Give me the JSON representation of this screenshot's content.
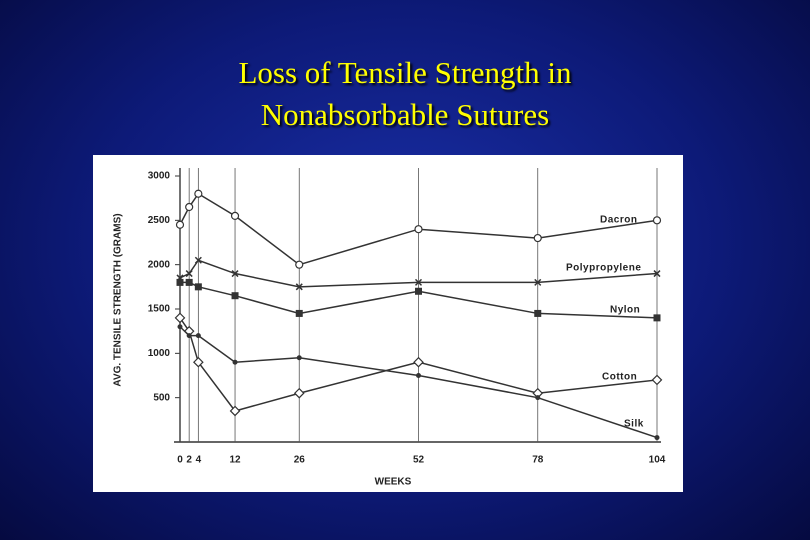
{
  "slide": {
    "title_lines": [
      "Loss of Tensile Strength in",
      "Nonabsorbable Sutures"
    ]
  },
  "chart_data": {
    "type": "line",
    "ylabel": "AVG. TENSILE STRENGTH (GRAMS)",
    "xlabel": "WEEKS",
    "x": [
      0,
      2,
      4,
      12,
      26,
      52,
      78,
      104
    ],
    "xlim": [
      0,
      104
    ],
    "xticks": [
      0,
      2,
      4,
      12,
      26,
      52,
      78,
      104
    ],
    "ylim": [
      0,
      3000
    ],
    "yticks": [
      500,
      1000,
      1500,
      2000,
      2500,
      3000
    ],
    "vertical_grid": true,
    "series": [
      {
        "name": "Dacron",
        "color": "#333333",
        "marker": "circle",
        "values": [
          2450,
          2650,
          2800,
          2550,
          2000,
          2400,
          2300,
          2500
        ]
      },
      {
        "name": "Polypropylene",
        "color": "#333333",
        "marker": "x",
        "values": [
          1850,
          1900,
          2050,
          1900,
          1750,
          1800,
          1800,
          1900
        ]
      },
      {
        "name": "Nylon",
        "color": "#333333",
        "marker": "square",
        "values": [
          1800,
          1800,
          1750,
          1650,
          1450,
          1700,
          1450,
          1400
        ]
      },
      {
        "name": "Cotton",
        "color": "#333333",
        "marker": "diamond",
        "values": [
          1400,
          1250,
          900,
          350,
          550,
          900,
          550,
          700
        ]
      },
      {
        "name": "Silk",
        "color": "#333333",
        "marker": "dot",
        "values": [
          1300,
          1200,
          1200,
          900,
          950,
          750,
          500,
          50
        ]
      }
    ]
  }
}
